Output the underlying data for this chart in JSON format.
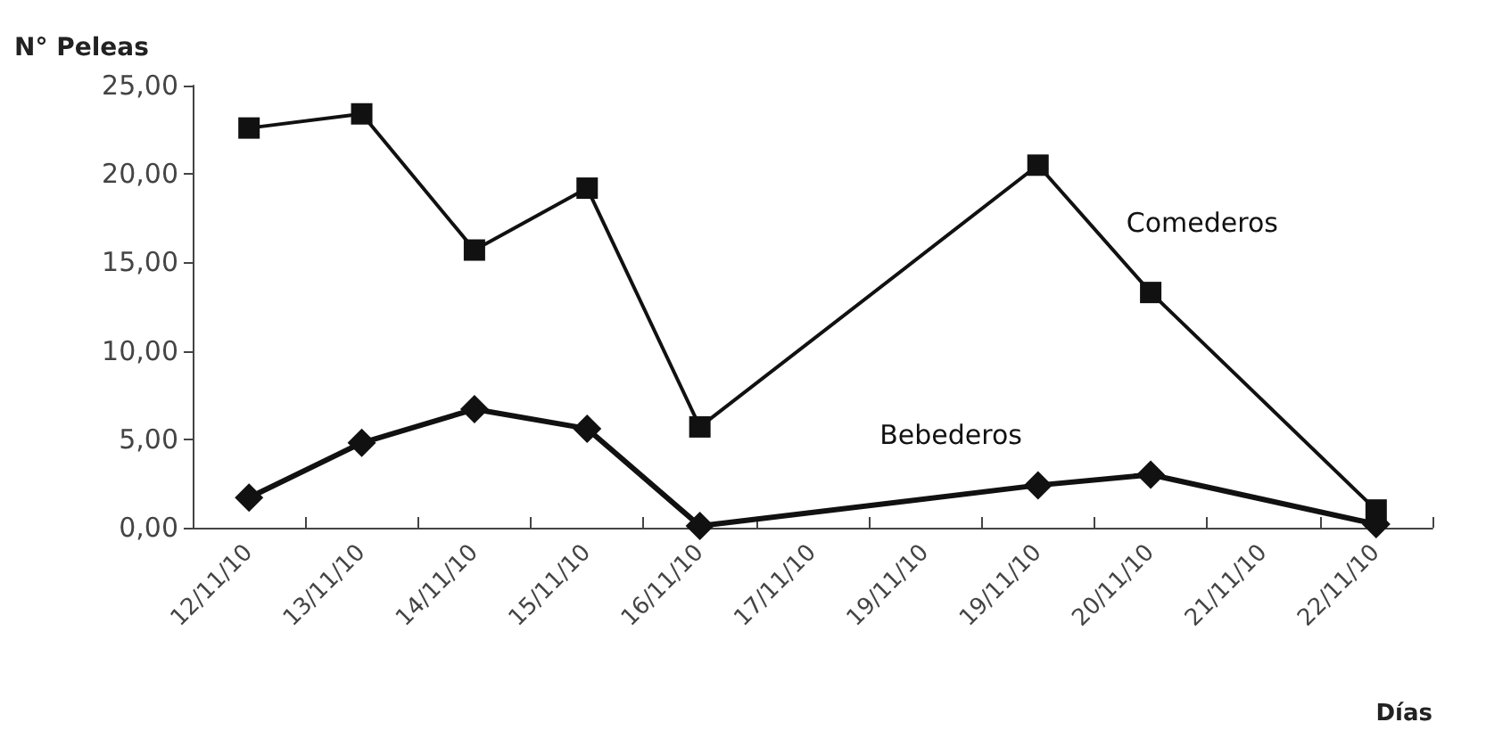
{
  "chart_data": {
    "type": "line",
    "xlabel": "Días",
    "ylabel": "N° Peleas",
    "categories": [
      "12/11/10",
      "13/11/10",
      "14/11/10",
      "15/11/10",
      "16/11/10",
      "17/11/10",
      "19/11/10",
      "19/11/10",
      "20/11/10",
      "21/11/10",
      "22/11/10"
    ],
    "series": [
      {
        "name": "Comederos",
        "color": "#111111",
        "marker": "square",
        "values": [
          22.6,
          23.4,
          15.7,
          19.2,
          5.7,
          null,
          null,
          20.5,
          13.3,
          null,
          1.0
        ]
      },
      {
        "name": "Bebederos",
        "color": "#111111",
        "marker": "diamond",
        "values": [
          1.7,
          4.8,
          6.7,
          5.6,
          0.1,
          null,
          null,
          2.4,
          3.0,
          null,
          0.2
        ]
      }
    ],
    "ylim": [
      0,
      25
    ],
    "yticks": [
      {
        "value": 0,
        "label": "0,00"
      },
      {
        "value": 5,
        "label": "5,00"
      },
      {
        "value": 10,
        "label": "10,00"
      },
      {
        "value": 15,
        "label": "15,00"
      },
      {
        "value": 20,
        "label": "20,00"
      },
      {
        "value": 25,
        "label": "25,00"
      }
    ],
    "grid": false,
    "legend": false,
    "line_style": "solid"
  }
}
